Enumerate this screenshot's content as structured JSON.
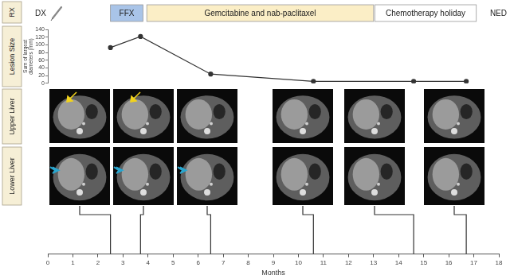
{
  "row_labels": [
    "RX",
    "Lesion Size",
    "Upper Liver",
    "Lower Liver"
  ],
  "rx": {
    "start_label": "DX",
    "end_label": "NED",
    "treatments": [
      {
        "label": "FFX",
        "start": 2.5,
        "end": 3.8,
        "color": "#a9c4e8"
      },
      {
        "label": "Gemcitabine and nab-paclitaxel",
        "start": 3.95,
        "end": 13.0,
        "color": "#fbeec6"
      },
      {
        "label": "Chemotherapy holiday",
        "start": 13.05,
        "end": 17.1,
        "color": "#ffffff"
      }
    ]
  },
  "chart_data": {
    "type": "line",
    "x": [
      2.5,
      3.7,
      6.5,
      10.6,
      14.6,
      16.7
    ],
    "values": [
      93,
      122,
      24,
      5,
      5,
      5
    ],
    "color": "#333333",
    "marker": "circle",
    "line_style": "solid",
    "xlim": [
      0,
      18
    ],
    "xticks": [
      0,
      1,
      2,
      3,
      4,
      5,
      6,
      7,
      8,
      9,
      10,
      11,
      12,
      13,
      14,
      15,
      16,
      17,
      18
    ],
    "ylim": [
      0,
      140
    ],
    "yticks": [
      0,
      20,
      40,
      60,
      80,
      100,
      120,
      140
    ],
    "x_label": "Months",
    "y_label": "Sum of largest diameters (mm)",
    "grid": false
  }
}
